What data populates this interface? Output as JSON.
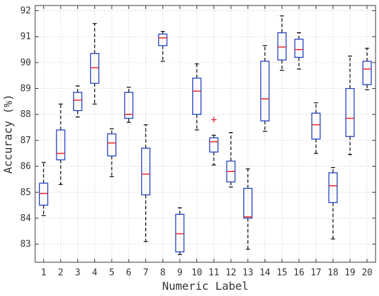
{
  "chart_data": {
    "type": "box",
    "xlabel": "Numeric Label",
    "ylabel": "Accuracy (%)",
    "categories": [
      "1",
      "2",
      "3",
      "4",
      "5",
      "6",
      "7",
      "8",
      "9",
      "10",
      "11",
      "12",
      "13",
      "14",
      "15",
      "16",
      "17",
      "18",
      "19",
      "20"
    ],
    "ylim": [
      82.3,
      92.2
    ],
    "yticks": [
      83,
      84,
      85,
      86,
      87,
      88,
      89,
      90,
      91,
      92
    ],
    "grid": true,
    "colors": {
      "box": "#1f3fbf",
      "median": "#e8202a",
      "whisker": "#000000",
      "outlier": "#e8202a"
    },
    "boxes": [
      {
        "label": "1",
        "whisker_low": 84.1,
        "q1": 84.5,
        "median": 84.95,
        "q3": 85.35,
        "whisker_high": 86.15,
        "outliers": []
      },
      {
        "label": "2",
        "whisker_low": 85.3,
        "q1": 86.25,
        "median": 86.5,
        "q3": 87.4,
        "whisker_high": 88.4,
        "outliers": []
      },
      {
        "label": "3",
        "whisker_low": 87.9,
        "q1": 88.15,
        "median": 88.55,
        "q3": 88.85,
        "whisker_high": 89.1,
        "outliers": []
      },
      {
        "label": "4",
        "whisker_low": 88.4,
        "q1": 89.2,
        "median": 89.8,
        "q3": 90.35,
        "whisker_high": 91.5,
        "outliers": []
      },
      {
        "label": "5",
        "whisker_low": 85.6,
        "q1": 86.4,
        "median": 86.9,
        "q3": 87.25,
        "whisker_high": 87.45,
        "outliers": []
      },
      {
        "label": "6",
        "whisker_low": 87.7,
        "q1": 87.85,
        "median": 88.0,
        "q3": 88.85,
        "whisker_high": 89.05,
        "outliers": []
      },
      {
        "label": "7",
        "whisker_low": 83.1,
        "q1": 84.9,
        "median": 85.7,
        "q3": 86.7,
        "whisker_high": 87.6,
        "outliers": []
      },
      {
        "label": "8",
        "whisker_low": 90.05,
        "q1": 90.65,
        "median": 90.95,
        "q3": 91.1,
        "whisker_high": 91.2,
        "outliers": []
      },
      {
        "label": "9",
        "whisker_low": 82.6,
        "q1": 82.7,
        "median": 83.4,
        "q3": 84.15,
        "whisker_high": 84.4,
        "outliers": []
      },
      {
        "label": "10",
        "whisker_low": 87.4,
        "q1": 88.0,
        "median": 88.9,
        "q3": 89.4,
        "whisker_high": 89.95,
        "outliers": []
      },
      {
        "label": "11",
        "whisker_low": 86.05,
        "q1": 86.55,
        "median": 86.95,
        "q3": 87.1,
        "whisker_high": 87.2,
        "outliers": [
          87.8
        ]
      },
      {
        "label": "12",
        "whisker_low": 85.2,
        "q1": 85.4,
        "median": 85.8,
        "q3": 86.2,
        "whisker_high": 87.3,
        "outliers": []
      },
      {
        "label": "13",
        "whisker_low": 82.8,
        "q1": 84.0,
        "median": 84.05,
        "q3": 85.15,
        "whisker_high": 85.9,
        "outliers": []
      },
      {
        "label": "14",
        "whisker_low": 87.35,
        "q1": 87.75,
        "median": 88.6,
        "q3": 90.05,
        "whisker_high": 90.65,
        "outliers": []
      },
      {
        "label": "15",
        "whisker_low": 89.7,
        "q1": 90.1,
        "median": 90.6,
        "q3": 91.15,
        "whisker_high": 91.8,
        "outliers": []
      },
      {
        "label": "16",
        "whisker_low": 89.75,
        "q1": 90.2,
        "median": 90.5,
        "q3": 90.9,
        "whisker_high": 91.15,
        "outliers": []
      },
      {
        "label": "17",
        "whisker_low": 86.5,
        "q1": 87.05,
        "median": 87.6,
        "q3": 88.05,
        "whisker_high": 88.45,
        "outliers": []
      },
      {
        "label": "18",
        "whisker_low": 83.2,
        "q1": 84.6,
        "median": 85.25,
        "q3": 85.75,
        "whisker_high": 85.95,
        "outliers": []
      },
      {
        "label": "19",
        "whisker_low": 86.45,
        "q1": 87.15,
        "median": 87.85,
        "q3": 89.0,
        "whisker_high": 90.25,
        "outliers": []
      },
      {
        "label": "20",
        "whisker_low": 88.95,
        "q1": 89.15,
        "median": 89.75,
        "q3": 90.05,
        "whisker_high": 90.55,
        "outliers": []
      }
    ]
  }
}
